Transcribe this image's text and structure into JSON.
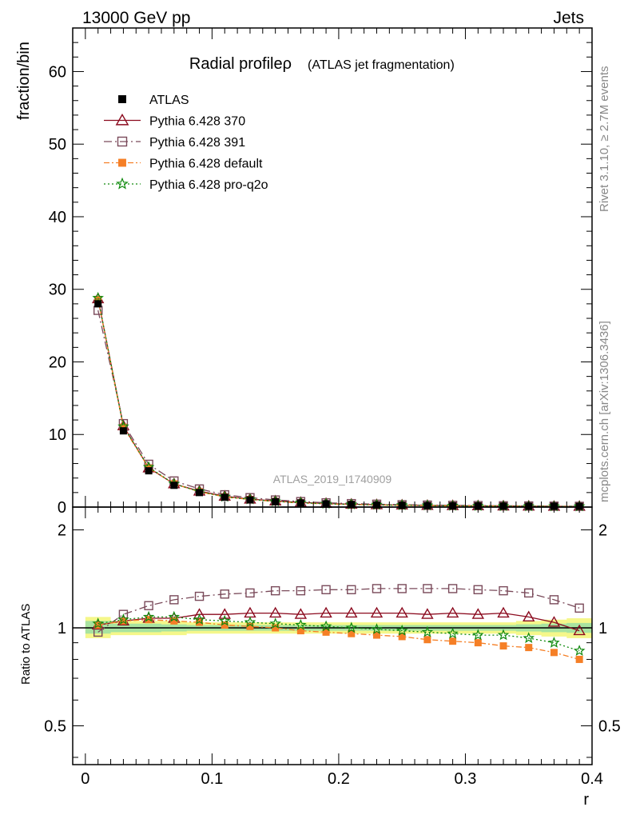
{
  "header": {
    "left": "13000 GeV pp",
    "right": "Jets"
  },
  "side": {
    "rivet": "Rivet 3.1.10, ≥ 2.7M events",
    "mcplots": "mcplots.cern.ch [arXiv:1306.3436]"
  },
  "watermark": "ATLAS_2019_I1740909",
  "chart_data": [
    {
      "type": "line",
      "title": "Radial profileρ",
      "subtitle": "(ATLAS jet fragmentation)",
      "xlabel": "",
      "ylabel": "fraction/bin",
      "xlim": [
        -0.01,
        0.4
      ],
      "ylim": [
        0,
        66
      ],
      "grid": false,
      "legend_position": "top-left",
      "yticks": [
        0,
        10,
        20,
        30,
        40,
        50,
        60
      ],
      "ytick_labels": [
        "0",
        "10",
        "20",
        "30",
        "40",
        "50",
        "60"
      ],
      "x": [
        0.01,
        0.03,
        0.05,
        0.07,
        0.09,
        0.11,
        0.13,
        0.15,
        0.17,
        0.19,
        0.21,
        0.23,
        0.25,
        0.27,
        0.29,
        0.31,
        0.33,
        0.35,
        0.37,
        0.39
      ],
      "series": [
        {
          "name": "ATLAS",
          "style": "data",
          "color": "#000000",
          "marker": "square-filled",
          "values": [
            28.0,
            10.5,
            5.0,
            3.0,
            2.0,
            1.35,
            1.0,
            0.75,
            0.58,
            0.45,
            0.36,
            0.3,
            0.25,
            0.21,
            0.18,
            0.16,
            0.14,
            0.12,
            0.11,
            0.1
          ]
        },
        {
          "name": "Pythia 6.428 370",
          "color": "#8b0a1e",
          "marker": "triangle-open",
          "dash": "",
          "values": [
            28.7,
            11.2,
            5.4,
            3.2,
            2.2,
            1.5,
            1.1,
            0.84,
            0.64,
            0.5,
            0.4,
            0.33,
            0.28,
            0.23,
            0.2,
            0.17,
            0.15,
            0.13,
            0.11,
            0.1
          ]
        },
        {
          "name": "Pythia 6.428 391",
          "color": "#7a4a5a",
          "marker": "square-open",
          "dash": "10,4,2,4",
          "values": [
            27.1,
            11.5,
            5.9,
            3.6,
            2.5,
            1.7,
            1.3,
            0.98,
            0.76,
            0.59,
            0.48,
            0.4,
            0.33,
            0.28,
            0.24,
            0.21,
            0.18,
            0.16,
            0.13,
            0.11
          ]
        },
        {
          "name": "Pythia 6.428 default",
          "color": "#f57f26",
          "marker": "square-filled",
          "dash": "7,3,2,3",
          "values": [
            28.6,
            11.0,
            5.4,
            3.2,
            2.1,
            1.4,
            1.05,
            0.76,
            0.57,
            0.44,
            0.35,
            0.29,
            0.24,
            0.2,
            0.17,
            0.15,
            0.13,
            0.11,
            0.1,
            0.08
          ]
        },
        {
          "name": "Pythia 6.428 pro-q2o",
          "color": "#108a0e",
          "marker": "star",
          "dash": "2,3",
          "values": [
            28.8,
            11.1,
            5.5,
            3.2,
            2.15,
            1.42,
            1.06,
            0.78,
            0.59,
            0.45,
            0.36,
            0.3,
            0.25,
            0.21,
            0.17,
            0.15,
            0.13,
            0.11,
            0.1,
            0.09
          ]
        }
      ]
    },
    {
      "type": "line",
      "ylabel": "Ratio to ATLAS",
      "xlabel": "r",
      "xlim": [
        -0.01,
        0.4
      ],
      "ylim": [
        0.38,
        2.35
      ],
      "log_y": true,
      "yticks": [
        0.5,
        1,
        2
      ],
      "ytick_labels": [
        "0.5",
        "1",
        "2"
      ],
      "xticks": [
        0,
        0.1,
        0.2,
        0.3,
        0.4
      ],
      "xtick_labels": [
        "0",
        "0.1",
        "0.2",
        "0.3",
        "0.4"
      ],
      "x": [
        0.01,
        0.03,
        0.05,
        0.07,
        0.09,
        0.11,
        0.13,
        0.15,
        0.17,
        0.19,
        0.21,
        0.23,
        0.25,
        0.27,
        0.29,
        0.31,
        0.33,
        0.35,
        0.37,
        0.39
      ],
      "band_yellow": {
        "lo": [
          0.93,
          0.95,
          0.95,
          0.95,
          0.96,
          0.96,
          0.96,
          0.96,
          0.96,
          0.96,
          0.96,
          0.96,
          0.96,
          0.96,
          0.96,
          0.96,
          0.96,
          0.95,
          0.94,
          0.93
        ],
        "hi": [
          1.08,
          1.05,
          1.05,
          1.05,
          1.04,
          1.04,
          1.04,
          1.04,
          1.04,
          1.04,
          1.04,
          1.04,
          1.04,
          1.04,
          1.04,
          1.04,
          1.04,
          1.05,
          1.06,
          1.07
        ]
      },
      "band_green": {
        "lo": [
          0.96,
          0.97,
          0.97,
          0.975,
          0.98,
          0.98,
          0.98,
          0.98,
          0.98,
          0.98,
          0.98,
          0.98,
          0.98,
          0.98,
          0.98,
          0.98,
          0.98,
          0.975,
          0.97,
          0.965
        ],
        "hi": [
          1.05,
          1.03,
          1.03,
          1.025,
          1.02,
          1.02,
          1.02,
          1.02,
          1.02,
          1.02,
          1.02,
          1.02,
          1.02,
          1.02,
          1.02,
          1.02,
          1.02,
          1.025,
          1.03,
          1.035
        ]
      },
      "series": [
        {
          "name": "Pythia 6.428 370",
          "color": "#8b0a1e",
          "marker": "triangle-open",
          "dash": "",
          "values": [
            1.02,
            1.05,
            1.07,
            1.07,
            1.1,
            1.1,
            1.11,
            1.11,
            1.1,
            1.11,
            1.11,
            1.11,
            1.11,
            1.1,
            1.11,
            1.1,
            1.11,
            1.08,
            1.04,
            0.98
          ]
        },
        {
          "name": "Pythia 6.428 391",
          "color": "#7a4a5a",
          "marker": "square-open",
          "dash": "10,4,2,4",
          "values": [
            0.97,
            1.1,
            1.17,
            1.22,
            1.25,
            1.27,
            1.28,
            1.3,
            1.3,
            1.31,
            1.31,
            1.32,
            1.32,
            1.32,
            1.32,
            1.31,
            1.3,
            1.28,
            1.22,
            1.15
          ]
        },
        {
          "name": "Pythia 6.428 default",
          "color": "#f57f26",
          "marker": "square-filled",
          "dash": "7,3,2,3",
          "values": [
            1.02,
            1.05,
            1.06,
            1.05,
            1.04,
            1.02,
            1.01,
            1.0,
            0.98,
            0.97,
            0.96,
            0.95,
            0.94,
            0.92,
            0.91,
            0.9,
            0.88,
            0.87,
            0.84,
            0.8
          ]
        },
        {
          "name": "Pythia 6.428 pro-q2o",
          "color": "#108a0e",
          "marker": "star",
          "dash": "2,3",
          "values": [
            1.03,
            1.06,
            1.08,
            1.08,
            1.06,
            1.05,
            1.04,
            1.03,
            1.02,
            1.01,
            1.0,
            0.99,
            0.98,
            0.97,
            0.96,
            0.95,
            0.95,
            0.93,
            0.9,
            0.85
          ]
        }
      ]
    }
  ]
}
